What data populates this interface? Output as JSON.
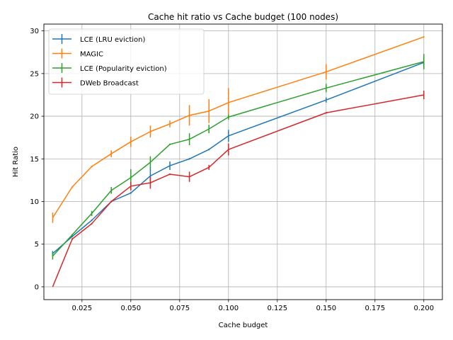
{
  "chart_data": {
    "type": "line",
    "title": "Cache hit ratio vs Cache budget (100 nodes)",
    "xlabel": "Cache budget",
    "ylabel": "Hit Ratio",
    "xlim": [
      0.0055,
      0.2095
    ],
    "ylim": [
      -1.5,
      30.8
    ],
    "grid": true,
    "legend_position": "top-left",
    "xticks": [
      0.025,
      0.05,
      0.075,
      0.1,
      0.125,
      0.15,
      0.175,
      0.2
    ],
    "xtick_labels": [
      "0.025",
      "0.050",
      "0.075",
      "0.100",
      "0.125",
      "0.150",
      "0.175",
      "0.200"
    ],
    "yticks": [
      0,
      5,
      10,
      15,
      20,
      25,
      30
    ],
    "ytick_labels": [
      "0",
      "5",
      "10",
      "15",
      "20",
      "25",
      "30"
    ],
    "series": [
      {
        "name": "LCE (LRU eviction)",
        "color": "#1f77b4",
        "x": [
          0.01,
          0.02,
          0.03,
          0.04,
          0.05,
          0.06,
          0.07,
          0.08,
          0.09,
          0.1,
          0.15,
          0.2
        ],
        "y": [
          3.9,
          5.9,
          7.8,
          10.0,
          11.0,
          13.0,
          14.2,
          15.0,
          16.1,
          17.7,
          21.9,
          26.3
        ],
        "err": [
          0.3,
          0.1,
          0.1,
          0.1,
          0.1,
          1.0,
          0.5,
          0.1,
          0.1,
          0.7,
          0.3,
          0.3
        ]
      },
      {
        "name": "MAGIC",
        "color": "#ff7f0e",
        "x": [
          0.01,
          0.02,
          0.03,
          0.04,
          0.05,
          0.06,
          0.07,
          0.08,
          0.09,
          0.1,
          0.15,
          0.2
        ],
        "y": [
          8.1,
          11.7,
          14.1,
          15.6,
          17.0,
          18.2,
          19.1,
          20.1,
          20.6,
          21.6,
          25.2,
          29.3
        ],
        "err": [
          0.6,
          0.1,
          0.1,
          0.4,
          0.6,
          0.7,
          0.4,
          1.2,
          1.4,
          1.7,
          0.9,
          0.1
        ]
      },
      {
        "name": "LCE (Popularity eviction)",
        "color": "#2ca02c",
        "x": [
          0.01,
          0.02,
          0.03,
          0.04,
          0.05,
          0.06,
          0.07,
          0.08,
          0.09,
          0.1,
          0.15,
          0.2
        ],
        "y": [
          3.6,
          6.1,
          8.6,
          11.3,
          12.8,
          14.6,
          16.7,
          17.3,
          18.5,
          19.9,
          23.3,
          26.4
        ],
        "err": [
          0.4,
          0.1,
          0.3,
          0.4,
          1.0,
          0.7,
          0.1,
          0.7,
          0.5,
          0.3,
          0.5,
          0.9
        ]
      },
      {
        "name": "DWeb Broadcast",
        "color": "#d62728",
        "x": [
          0.01,
          0.02,
          0.03,
          0.04,
          0.05,
          0.06,
          0.07,
          0.08,
          0.09,
          0.1,
          0.15,
          0.2
        ],
        "y": [
          0.0,
          5.6,
          7.4,
          10.0,
          11.8,
          12.2,
          13.2,
          12.9,
          14.0,
          16.1,
          20.4,
          22.5
        ],
        "err": [
          0.0,
          0.1,
          0.1,
          0.1,
          0.5,
          0.7,
          0.1,
          0.6,
          0.3,
          0.7,
          0.1,
          0.5
        ]
      }
    ]
  }
}
